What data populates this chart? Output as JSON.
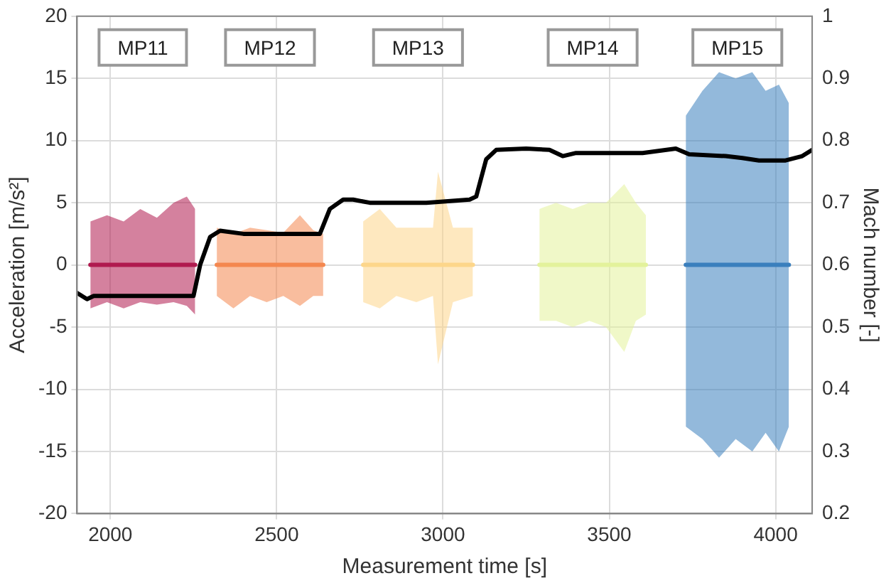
{
  "chart_data": {
    "type": "line",
    "xlabel": "Measurement time [s]",
    "ylabel": "Acceleration [m/s²]",
    "y2label": "Mach number [-]",
    "xlim": [
      1900,
      4110
    ],
    "xticks": [
      2000,
      2500,
      3000,
      3500,
      4000
    ],
    "ylim": [
      -20,
      20
    ],
    "yticks": [
      -20,
      -15,
      -10,
      -5,
      0,
      5,
      10,
      15,
      20
    ],
    "y2lim": [
      0.2,
      1
    ],
    "y2ticks": [
      0.2,
      0.3,
      0.4,
      0.5,
      0.6,
      0.7,
      0.8,
      0.9,
      1
    ],
    "grid": true,
    "legend": false,
    "marker": "none",
    "line_style": "solid",
    "series": [
      {
        "color": "#b01a4f",
        "x": [
          1940,
          1990,
          2040,
          2090,
          2140,
          2190,
          2230,
          2255
        ],
        "values": [
          0,
          0,
          0,
          0,
          0,
          0,
          0,
          0
        ],
        "lower": [
          -3.5,
          -3,
          -3.5,
          -3,
          -3.2,
          -3,
          -3.3,
          -4
        ],
        "upper": [
          3.5,
          4,
          3.5,
          4.5,
          3.8,
          5,
          5.5,
          4.5
        ]
      },
      {
        "color": "#f4874f",
        "x": [
          2320,
          2370,
          2420,
          2470,
          2520,
          2570,
          2610,
          2640
        ],
        "values": [
          0,
          0,
          0,
          0,
          0,
          0,
          0,
          0
        ],
        "lower": [
          -2.5,
          -3.5,
          -2.5,
          -3,
          -2.5,
          -3.3,
          -2.5,
          -2.5
        ],
        "upper": [
          3,
          2.5,
          3,
          2.8,
          2.6,
          4,
          2.8,
          2.5
        ]
      },
      {
        "color": "#fdd68a",
        "x": [
          2760,
          2810,
          2860,
          2920,
          2970,
          2985,
          3030,
          3090
        ],
        "values": [
          0,
          0,
          0,
          0,
          0,
          0,
          0,
          0
        ],
        "lower": [
          -3,
          -3.5,
          -2.5,
          -3,
          -2.5,
          -8,
          -3,
          -2.5
        ],
        "upper": [
          3.5,
          4.5,
          3,
          3,
          3,
          7.5,
          3,
          3
        ]
      },
      {
        "color": "#e3f29b",
        "x": [
          3290,
          3340,
          3390,
          3440,
          3490,
          3545,
          3580,
          3610
        ],
        "values": [
          0,
          0,
          0,
          0,
          0,
          0,
          0,
          0
        ],
        "lower": [
          -4.5,
          -4.5,
          -5,
          -4.5,
          -5,
          -7,
          -4.5,
          -4
        ],
        "upper": [
          4.5,
          5,
          4.5,
          5,
          5,
          6.5,
          5,
          4
        ]
      },
      {
        "color": "#3a7fbd",
        "x": [
          3730,
          3780,
          3830,
          3880,
          3930,
          3970,
          4010,
          4040
        ],
        "values": [
          0,
          0,
          0,
          0,
          0,
          0,
          0,
          0
        ],
        "lower": [
          -13,
          -14,
          -15.5,
          -14,
          -15,
          -13.5,
          -15,
          -13
        ],
        "upper": [
          12,
          14,
          15.5,
          15,
          15.5,
          14,
          14.5,
          13
        ]
      },
      {
        "axis": "y2",
        "color": "#000000",
        "x": [
          1900,
          1930,
          1950,
          2000,
          2250,
          2270,
          2300,
          2330,
          2400,
          2630,
          2660,
          2700,
          2730,
          2780,
          2900,
          2950,
          3080,
          3100,
          3130,
          3160,
          3250,
          3320,
          3360,
          3400,
          3500,
          3600,
          3700,
          3740,
          3850,
          3900,
          3950,
          4030,
          4080,
          4110
        ],
        "values": [
          0.555,
          0.545,
          0.55,
          0.55,
          0.55,
          0.6,
          0.645,
          0.655,
          0.65,
          0.65,
          0.69,
          0.705,
          0.705,
          0.7,
          0.7,
          0.7,
          0.705,
          0.71,
          0.77,
          0.785,
          0.787,
          0.785,
          0.775,
          0.78,
          0.78,
          0.78,
          0.787,
          0.778,
          0.775,
          0.772,
          0.768,
          0.768,
          0.775,
          0.785
        ]
      }
    ],
    "annotations": [
      "MP11",
      "MP12",
      "MP13",
      "MP14",
      "MP15"
    ]
  }
}
